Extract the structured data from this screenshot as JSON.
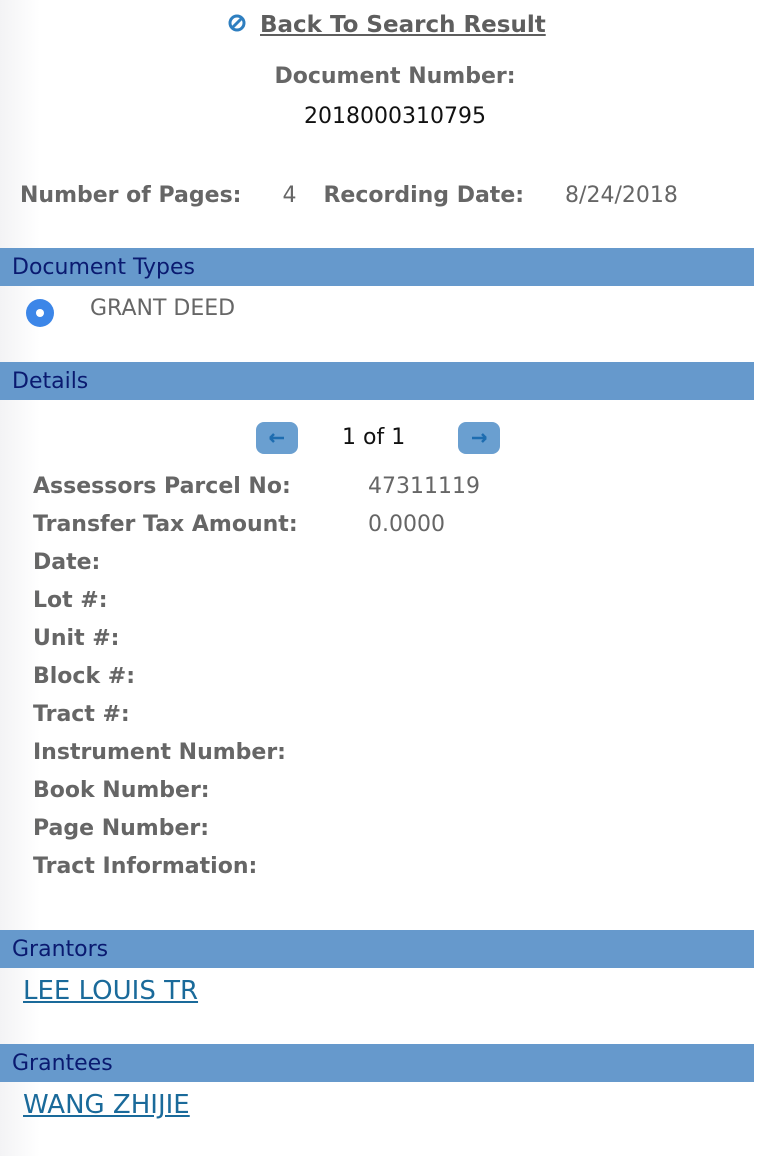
{
  "header": {
    "back_link": "Back To Search Result",
    "back_icon": "circle-slash-icon",
    "document_number_label": "Document Number:",
    "document_number": "2018000310795",
    "pages_label": "Number of Pages:",
    "pages": "4",
    "recording_date_label": "Recording Date:",
    "recording_date": "8/24/2018"
  },
  "document_types": {
    "title": "Document Types",
    "items": [
      {
        "label": "GRANT DEED",
        "selected": true
      }
    ]
  },
  "details": {
    "title": "Details",
    "pager": {
      "text": "1 of 1",
      "prev_icon": "arrow-left-icon",
      "next_icon": "arrow-right-icon"
    },
    "rows": [
      {
        "label": "Assessors Parcel No:",
        "value": "47311119"
      },
      {
        "label": "Transfer Tax Amount:",
        "value": "0.0000"
      },
      {
        "label": "Date:",
        "value": ""
      },
      {
        "label": "Lot #:",
        "value": ""
      },
      {
        "label": "Unit #:",
        "value": ""
      },
      {
        "label": "Block #:",
        "value": ""
      },
      {
        "label": "Tract #:",
        "value": ""
      },
      {
        "label": "Instrument Number:",
        "value": ""
      },
      {
        "label": "Book Number:",
        "value": ""
      },
      {
        "label": "Page Number:",
        "value": ""
      },
      {
        "label": "Tract Information:",
        "value": ""
      }
    ]
  },
  "grantors": {
    "title": "Grantors",
    "items": [
      "LEE LOUIS TR"
    ]
  },
  "grantees": {
    "title": "Grantees",
    "items": [
      "WANG ZHIJIE"
    ]
  },
  "colors": {
    "section_bar": "#6699cc",
    "section_text": "#0a1a70",
    "link": "#1a6a9a",
    "radio": "#3c86e8"
  }
}
